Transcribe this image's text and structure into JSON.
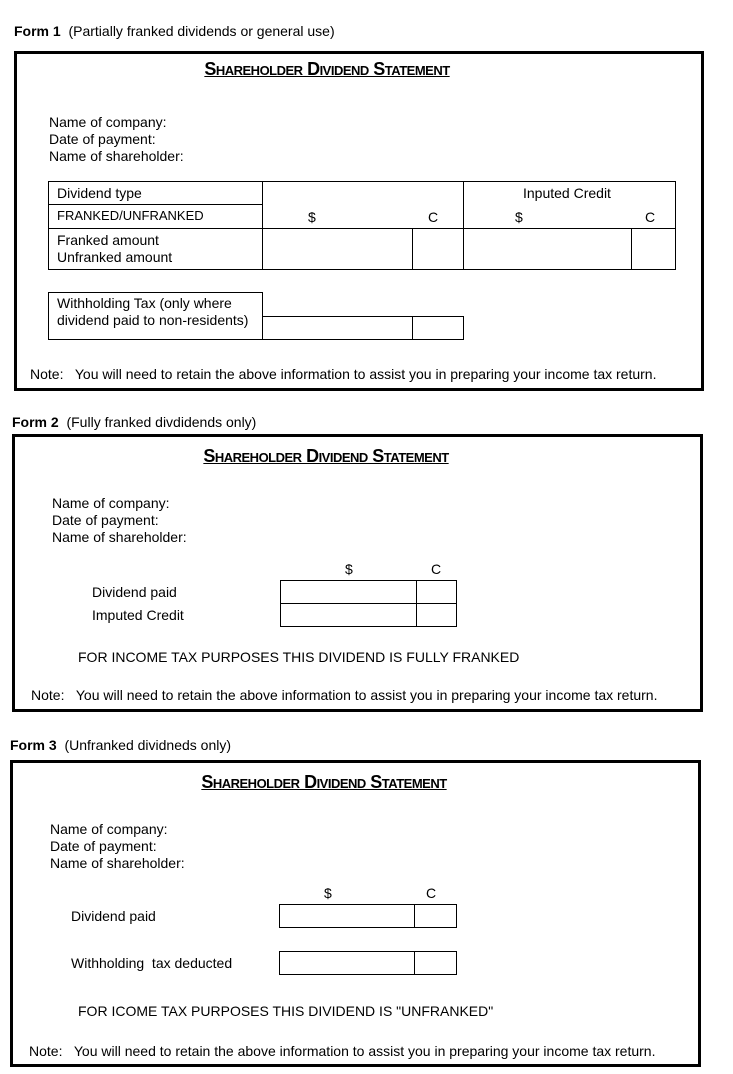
{
  "form1": {
    "label": "Form 1",
    "subtitle": "(Partially franked dividends or general use)",
    "title": "Shareholder Dividend Statement",
    "fields": [
      "Name of company:",
      "Date of payment:",
      "Name of shareholder:"
    ],
    "table": {
      "dividend_type": "Dividend type",
      "franked_unfranked": "FRANKED/UNFRANKED",
      "dollar": "$",
      "cents": "C",
      "imputed_credit": "Inputed Credit",
      "imputed_dollar": "$",
      "imputed_cents": "C",
      "franked_amount": "Franked amount",
      "unfranked_amount": "Unfranked amount"
    },
    "withholding_line1": "Withholding Tax (only where",
    "withholding_line2": "dividend paid to non-residents)",
    "note": "Note:   You will need to retain the above information to assist you in preparing your income tax return."
  },
  "form2": {
    "label": "Form 2",
    "subtitle": "(Fully franked divdidends only)",
    "title": "Shareholder Dividend Statement",
    "fields": [
      "Name of company:",
      "Date of payment:",
      "Name of shareholder:"
    ],
    "dollar": "$",
    "cents": "C",
    "rows": [
      "Dividend paid",
      "Imputed Credit"
    ],
    "statement": "FOR INCOME TAX PURPOSES THIS DIVIDEND IS FULLY FRANKED",
    "note": "Note:   You will need to retain the above information to assist you in preparing your income tax return."
  },
  "form3": {
    "label": "Form 3",
    "subtitle": "(Unfranked dividneds only)",
    "title": "Shareholder Dividend Statement",
    "fields": [
      "Name of company:",
      "Date of payment:",
      "Name of shareholder:"
    ],
    "dollar": "$",
    "cents": "C",
    "rows": [
      "Dividend paid",
      "Withholding  tax deducted"
    ],
    "statement": "FOR ICOME TAX PURPOSES THIS DIVIDEND IS \"UNFRANKED\"",
    "note": "Note:   You will need to retain the above information to assist you in preparing your income tax return."
  }
}
